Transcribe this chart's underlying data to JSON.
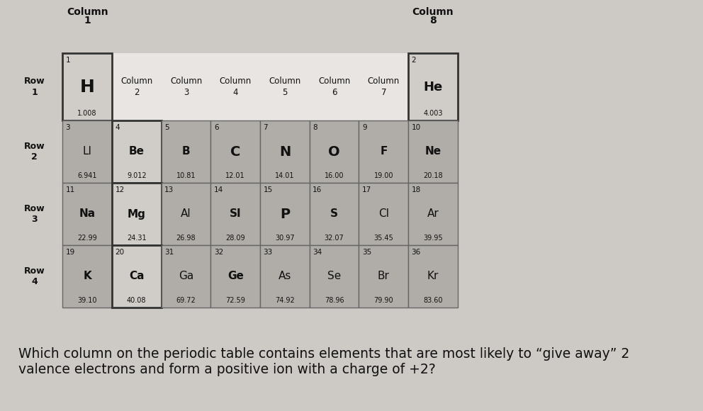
{
  "background_color": "#cdc9c5",
  "title_question": "Which column on the periodic table contains elements that are most likely to “give away” 2\nvalence electrons and form a positive ion with a charge of +2?",
  "col1_label": "Column\n1",
  "col8_label": "Column\n8",
  "col_labels_mid": [
    {
      "text": "Column\n2",
      "col": 1
    },
    {
      "text": "Column\n3",
      "col": 2
    },
    {
      "text": "Column\n4",
      "col": 3
    },
    {
      "text": "Column\n5",
      "col": 4
    },
    {
      "text": "Column\n6",
      "col": 5
    },
    {
      "text": "Column\n7",
      "col": 6
    }
  ],
  "row_labels": [
    {
      "text": "Row\n1",
      "row": 0
    },
    {
      "text": "Row\n2",
      "row": 1
    },
    {
      "text": "Row\n3",
      "row": 2
    },
    {
      "text": "Row\n4",
      "row": 3
    }
  ],
  "elements": [
    {
      "atomic_num": "1",
      "symbol": "H",
      "mass": "1.008",
      "row": 0,
      "col": 0,
      "highlighted": true,
      "sym_bold": true,
      "sym_large": true
    },
    {
      "atomic_num": "2",
      "symbol": "He",
      "mass": "4.003",
      "row": 0,
      "col": 7,
      "highlighted": true,
      "sym_bold": true,
      "sym_large": false
    },
    {
      "atomic_num": "3",
      "symbol": "LI",
      "mass": "6.941",
      "row": 1,
      "col": 0,
      "highlighted": false,
      "sym_bold": false,
      "sym_large": false
    },
    {
      "atomic_num": "4",
      "symbol": "Be",
      "mass": "9.012",
      "row": 1,
      "col": 1,
      "highlighted": true,
      "sym_bold": true,
      "sym_large": false
    },
    {
      "atomic_num": "5",
      "symbol": "B",
      "mass": "10.81",
      "row": 1,
      "col": 2,
      "highlighted": false,
      "sym_bold": true,
      "sym_large": false
    },
    {
      "atomic_num": "6",
      "symbol": "C",
      "mass": "12.01",
      "row": 1,
      "col": 3,
      "highlighted": false,
      "sym_bold": true,
      "sym_large": true
    },
    {
      "atomic_num": "7",
      "symbol": "N",
      "mass": "14.01",
      "row": 1,
      "col": 4,
      "highlighted": false,
      "sym_bold": true,
      "sym_large": true
    },
    {
      "atomic_num": "8",
      "symbol": "O",
      "mass": "16.00",
      "row": 1,
      "col": 5,
      "highlighted": false,
      "sym_bold": true,
      "sym_large": true
    },
    {
      "atomic_num": "9",
      "symbol": "F",
      "mass": "19.00",
      "row": 1,
      "col": 6,
      "highlighted": false,
      "sym_bold": true,
      "sym_large": false
    },
    {
      "atomic_num": "10",
      "symbol": "Ne",
      "mass": "20.18",
      "row": 1,
      "col": 7,
      "highlighted": false,
      "sym_bold": true,
      "sym_large": false
    },
    {
      "atomic_num": "11",
      "symbol": "Na",
      "mass": "22.99",
      "row": 2,
      "col": 0,
      "highlighted": false,
      "sym_bold": true,
      "sym_large": false
    },
    {
      "atomic_num": "12",
      "symbol": "Mg",
      "mass": "24.31",
      "row": 2,
      "col": 1,
      "highlighted": true,
      "sym_bold": true,
      "sym_large": false
    },
    {
      "atomic_num": "13",
      "symbol": "Al",
      "mass": "26.98",
      "row": 2,
      "col": 2,
      "highlighted": false,
      "sym_bold": false,
      "sym_large": false
    },
    {
      "atomic_num": "14",
      "symbol": "SI",
      "mass": "28.09",
      "row": 2,
      "col": 3,
      "highlighted": false,
      "sym_bold": true,
      "sym_large": false
    },
    {
      "atomic_num": "15",
      "symbol": "P",
      "mass": "30.97",
      "row": 2,
      "col": 4,
      "highlighted": false,
      "sym_bold": true,
      "sym_large": true
    },
    {
      "atomic_num": "16",
      "symbol": "S",
      "mass": "32.07",
      "row": 2,
      "col": 5,
      "highlighted": false,
      "sym_bold": true,
      "sym_large": false
    },
    {
      "atomic_num": "17",
      "symbol": "CI",
      "mass": "35.45",
      "row": 2,
      "col": 6,
      "highlighted": false,
      "sym_bold": false,
      "sym_large": false
    },
    {
      "atomic_num": "18",
      "symbol": "Ar",
      "mass": "39.95",
      "row": 2,
      "col": 7,
      "highlighted": false,
      "sym_bold": false,
      "sym_large": false
    },
    {
      "atomic_num": "19",
      "symbol": "K",
      "mass": "39.10",
      "row": 3,
      "col": 0,
      "highlighted": false,
      "sym_bold": true,
      "sym_large": false
    },
    {
      "atomic_num": "20",
      "symbol": "Ca",
      "mass": "40.08",
      "row": 3,
      "col": 1,
      "highlighted": true,
      "sym_bold": true,
      "sym_large": false
    },
    {
      "atomic_num": "31",
      "symbol": "Ga",
      "mass": "69.72",
      "row": 3,
      "col": 2,
      "highlighted": false,
      "sym_bold": false,
      "sym_large": false
    },
    {
      "atomic_num": "32",
      "symbol": "Ge",
      "mass": "72.59",
      "row": 3,
      "col": 3,
      "highlighted": false,
      "sym_bold": true,
      "sym_large": false
    },
    {
      "atomic_num": "33",
      "symbol": "As",
      "mass": "74.92",
      "row": 3,
      "col": 4,
      "highlighted": false,
      "sym_bold": false,
      "sym_large": false
    },
    {
      "atomic_num": "34",
      "symbol": "Se",
      "mass": "78.96",
      "row": 3,
      "col": 5,
      "highlighted": false,
      "sym_bold": false,
      "sym_large": false
    },
    {
      "atomic_num": "35",
      "symbol": "Br",
      "mass": "79.90",
      "row": 3,
      "col": 6,
      "highlighted": false,
      "sym_bold": false,
      "sym_large": false
    },
    {
      "atomic_num": "36",
      "symbol": "Kr",
      "mass": "83.60",
      "row": 3,
      "col": 7,
      "highlighted": false,
      "sym_bold": false,
      "sym_large": false
    }
  ],
  "cell_color_normal": "#b0ada9",
  "cell_color_highlighted": "#d0ccc8",
  "cell_border_normal": "#666666",
  "cell_border_highlighted": "#333333",
  "row1_gap_color": "#e8e5e2",
  "text_color": "#111111"
}
